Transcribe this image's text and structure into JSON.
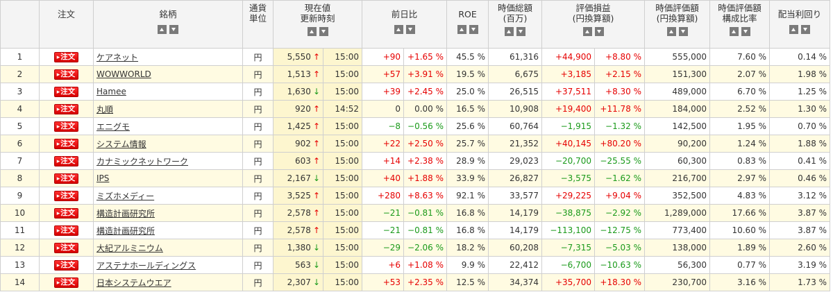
{
  "headers": {
    "order": "注文",
    "name": "銘柄",
    "currency_1": "通貨",
    "currency_2": "単位",
    "price_1": "現在値",
    "price_2": "更新時刻",
    "change": "前日比",
    "roe": "ROE",
    "mktcap_1": "時価総額",
    "mktcap_2": "(百万)",
    "pl_1": "評価損益",
    "pl_2": "(円換算額)",
    "value_1": "時価評価額",
    "value_2": "(円換算額)",
    "ratio_1": "時価評価額",
    "ratio_2": "構成比率",
    "yield": "配当利回り"
  },
  "order_label": "注文",
  "colors": {
    "positive": "#e60000",
    "negative": "#1a9a1a",
    "row_alt": "#fffbe2",
    "price_bg": "#fdf6cf"
  },
  "rows": [
    {
      "idx": "1",
      "name": "ケアネット",
      "cur": "円",
      "price": "5,550",
      "dir": "up",
      "time": "15:00",
      "chg": "+90",
      "chg_pct": "+1.65 %",
      "chg_sign": "pos",
      "roe": "45.5 %",
      "mktcap": "61,316",
      "pl": "+44,900",
      "pl_pct": "+8.80 %",
      "pl_sign": "pos",
      "value": "555,000",
      "ratio": "7.60 %",
      "yield": "0.14 %"
    },
    {
      "idx": "2",
      "name": "WOWWORLD",
      "cur": "円",
      "price": "1,513",
      "dir": "up",
      "time": "15:00",
      "chg": "+57",
      "chg_pct": "+3.91 %",
      "chg_sign": "pos",
      "roe": "19.5 %",
      "mktcap": "6,675",
      "pl": "+3,185",
      "pl_pct": "+2.15 %",
      "pl_sign": "pos",
      "value": "151,300",
      "ratio": "2.07 %",
      "yield": "1.98 %"
    },
    {
      "idx": "3",
      "name": "Hamee",
      "cur": "円",
      "price": "1,630",
      "dir": "down",
      "time": "15:00",
      "chg": "+39",
      "chg_pct": "+2.45 %",
      "chg_sign": "pos",
      "roe": "25.0 %",
      "mktcap": "26,515",
      "pl": "+37,511",
      "pl_pct": "+8.30 %",
      "pl_sign": "pos",
      "value": "489,000",
      "ratio": "6.70 %",
      "yield": "1.25 %"
    },
    {
      "idx": "4",
      "name": "丸順",
      "cur": "円",
      "price": "920",
      "dir": "up",
      "time": "14:52",
      "chg": "0",
      "chg_pct": "0.00 %",
      "chg_sign": "zero",
      "roe": "16.5 %",
      "mktcap": "10,908",
      "pl": "+19,400",
      "pl_pct": "+11.78 %",
      "pl_sign": "pos",
      "value": "184,000",
      "ratio": "2.52 %",
      "yield": "1.30 %"
    },
    {
      "idx": "5",
      "name": "エニグモ",
      "cur": "円",
      "price": "1,425",
      "dir": "up",
      "time": "15:00",
      "chg": "−8",
      "chg_pct": "−0.56 %",
      "chg_sign": "neg",
      "roe": "25.6 %",
      "mktcap": "60,764",
      "pl": "−1,915",
      "pl_pct": "−1.32 %",
      "pl_sign": "neg",
      "value": "142,500",
      "ratio": "1.95 %",
      "yield": "0.70 %"
    },
    {
      "idx": "6",
      "name": "システム情報",
      "cur": "円",
      "price": "902",
      "dir": "up",
      "time": "15:00",
      "chg": "+22",
      "chg_pct": "+2.50 %",
      "chg_sign": "pos",
      "roe": "25.7 %",
      "mktcap": "21,352",
      "pl": "+40,145",
      "pl_pct": "+80.20 %",
      "pl_sign": "pos",
      "value": "90,200",
      "ratio": "1.24 %",
      "yield": "1.88 %"
    },
    {
      "idx": "7",
      "name": "カナミックネットワーク",
      "cur": "円",
      "price": "603",
      "dir": "up",
      "time": "15:00",
      "chg": "+14",
      "chg_pct": "+2.38 %",
      "chg_sign": "pos",
      "roe": "28.9 %",
      "mktcap": "29,023",
      "pl": "−20,700",
      "pl_pct": "−25.55 %",
      "pl_sign": "neg",
      "value": "60,300",
      "ratio": "0.83 %",
      "yield": "0.41 %"
    },
    {
      "idx": "8",
      "name": "IPS",
      "cur": "円",
      "price": "2,167",
      "dir": "down",
      "time": "15:00",
      "chg": "+40",
      "chg_pct": "+1.88 %",
      "chg_sign": "pos",
      "roe": "33.9 %",
      "mktcap": "26,827",
      "pl": "−3,575",
      "pl_pct": "−1.62 %",
      "pl_sign": "neg",
      "value": "216,700",
      "ratio": "2.97 %",
      "yield": "0.46 %"
    },
    {
      "idx": "9",
      "name": "ミズホメディー",
      "cur": "円",
      "price": "3,525",
      "dir": "up",
      "time": "15:00",
      "chg": "+280",
      "chg_pct": "+8.63 %",
      "chg_sign": "pos",
      "roe": "92.1 %",
      "mktcap": "33,577",
      "pl": "+29,225",
      "pl_pct": "+9.04 %",
      "pl_sign": "pos",
      "value": "352,500",
      "ratio": "4.83 %",
      "yield": "3.12 %"
    },
    {
      "idx": "10",
      "name": "構造計画研究所",
      "cur": "円",
      "price": "2,578",
      "dir": "up",
      "time": "15:00",
      "chg": "−21",
      "chg_pct": "−0.81 %",
      "chg_sign": "neg",
      "roe": "16.8 %",
      "mktcap": "14,179",
      "pl": "−38,875",
      "pl_pct": "−2.92 %",
      "pl_sign": "neg",
      "value": "1,289,000",
      "ratio": "17.66 %",
      "yield": "3.87 %"
    },
    {
      "idx": "11",
      "name": "構造計画研究所",
      "cur": "円",
      "price": "2,578",
      "dir": "up",
      "time": "15:00",
      "chg": "−21",
      "chg_pct": "−0.81 %",
      "chg_sign": "neg",
      "roe": "16.8 %",
      "mktcap": "14,179",
      "pl": "−113,100",
      "pl_pct": "−12.75 %",
      "pl_sign": "neg",
      "value": "773,400",
      "ratio": "10.60 %",
      "yield": "3.87 %"
    },
    {
      "idx": "12",
      "name": "大紀アルミニウム",
      "cur": "円",
      "price": "1,380",
      "dir": "down",
      "time": "15:00",
      "chg": "−29",
      "chg_pct": "−2.06 %",
      "chg_sign": "neg",
      "roe": "18.2 %",
      "mktcap": "60,208",
      "pl": "−7,315",
      "pl_pct": "−5.03 %",
      "pl_sign": "neg",
      "value": "138,000",
      "ratio": "1.89 %",
      "yield": "2.60 %"
    },
    {
      "idx": "13",
      "name": "アステナホールディングス",
      "cur": "円",
      "price": "563",
      "dir": "down",
      "time": "15:00",
      "chg": "+6",
      "chg_pct": "+1.08 %",
      "chg_sign": "pos",
      "roe": "9.9 %",
      "mktcap": "22,412",
      "pl": "−6,700",
      "pl_pct": "−10.63 %",
      "pl_sign": "neg",
      "value": "56,300",
      "ratio": "0.77 %",
      "yield": "3.19 %"
    },
    {
      "idx": "14",
      "name": "日本システムウエア",
      "cur": "円",
      "price": "2,307",
      "dir": "down",
      "time": "15:00",
      "chg": "+53",
      "chg_pct": "+2.35 %",
      "chg_sign": "pos",
      "roe": "12.5 %",
      "mktcap": "34,374",
      "pl": "+35,700",
      "pl_pct": "+18.30 %",
      "pl_sign": "pos",
      "value": "230,700",
      "ratio": "3.16 %",
      "yield": "1.73 %"
    }
  ]
}
